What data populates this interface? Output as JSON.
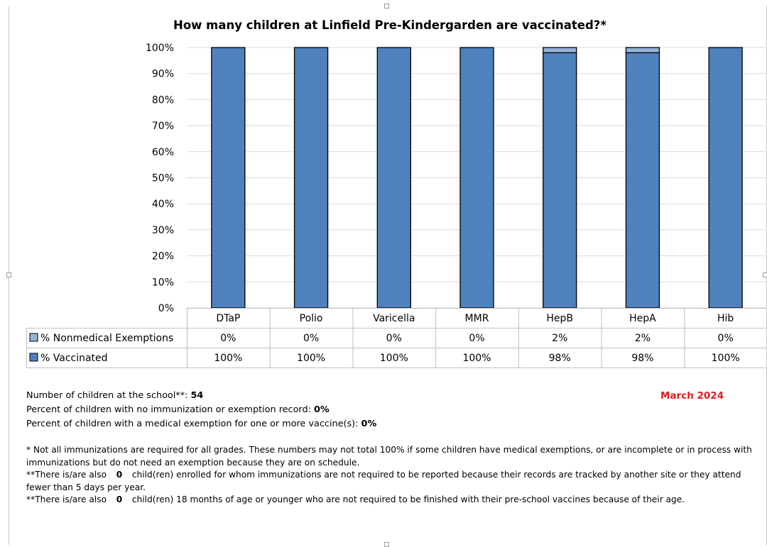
{
  "chart_data": {
    "type": "bar",
    "stacked": true,
    "title": "How many children at Linfield Pre-Kindergarden are vaccinated?*",
    "categories": [
      "DTaP",
      "Polio",
      "Varicella",
      "MMR",
      "HepB",
      "HepA",
      "Hib"
    ],
    "ylim": [
      0,
      100
    ],
    "yticks": [
      "0%",
      "10%",
      "20%",
      "30%",
      "40%",
      "50%",
      "60%",
      "70%",
      "80%",
      "90%",
      "100%"
    ],
    "grid": true,
    "series": [
      {
        "name": "% Vaccinated",
        "values": [
          100,
          100,
          100,
          100,
          98,
          98,
          100
        ],
        "labels": [
          "100%",
          "100%",
          "100%",
          "100%",
          "98%",
          "98%",
          "100%"
        ],
        "color": "#4f81bd"
      },
      {
        "name": "% Nonmedical Exemptions",
        "values": [
          0,
          0,
          0,
          0,
          2,
          2,
          0
        ],
        "labels": [
          "0%",
          "0%",
          "0%",
          "0%",
          "2%",
          "2%",
          "0%"
        ],
        "color": "#95b3d7"
      }
    ]
  },
  "info": {
    "children_label": "Number of children at the school**:",
    "children_value": "54",
    "no_record_label": "Percent of children with no immunization or exemption record:",
    "no_record_value": "0%",
    "medical_label": "Percent of children with a medical exemption for one or more vaccine(s):",
    "medical_value": "0%",
    "date": "March 2024"
  },
  "notes": {
    "note1": "* Not all immunizations are required for all grades. These numbers may not total 100% if some children have medical exemptions, or are incomplete or in process with immunizations but do not need an exemption because they are on schedule.",
    "note2_prefix": "**There is/are also",
    "note2_value": "0",
    "note2_suffix": "child(ren) enrolled for whom immunizations are not required to be reported because their records are tracked by another site or they attend fewer than 5 days per year.",
    "note3_prefix": "**There is/are also",
    "note3_value": "0",
    "note3_suffix": "child(ren) 18 months of age or younger who are not required to be finished with their pre-school vaccines because of their age."
  }
}
